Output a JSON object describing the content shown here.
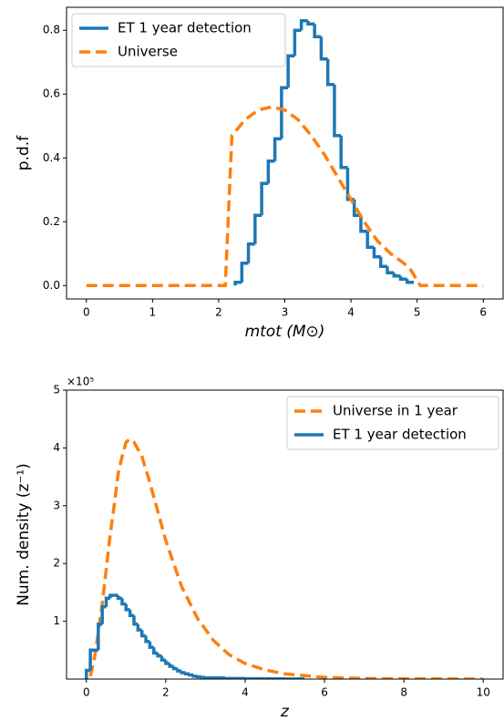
{
  "chart_data": [
    {
      "type": "line",
      "xlabel": "mtot (M⊙)",
      "ylabel": "p.d.f",
      "legend": "upper left",
      "xlim": [
        -0.3,
        6.3
      ],
      "ylim": [
        -0.042,
        0.872
      ],
      "xticks": [
        0,
        1,
        2,
        3,
        4,
        5,
        6
      ],
      "yticks": [
        {
          "value": 0,
          "label": "0.0"
        },
        0.2,
        0.4,
        0.6,
        0.8
      ],
      "series": [
        {
          "name": "ET 1 year detection",
          "color": "#1f77b4",
          "style": "steps",
          "bins": [
            2.25,
            2.35,
            2.45,
            2.55,
            2.65,
            2.75,
            2.85,
            2.95,
            3.05,
            3.15,
            3.25,
            3.35,
            3.45,
            3.55,
            3.65,
            3.75,
            3.85,
            3.95,
            4.05,
            4.15,
            4.25,
            4.35,
            4.45,
            4.55,
            4.65,
            4.75,
            4.85,
            4.95
          ],
          "values": [
            0.01,
            0.07,
            0.13,
            0.22,
            0.32,
            0.39,
            0.46,
            0.62,
            0.72,
            0.8,
            0.83,
            0.82,
            0.78,
            0.71,
            0.63,
            0.47,
            0.37,
            0.27,
            0.22,
            0.17,
            0.12,
            0.09,
            0.06,
            0.04,
            0.03,
            0.02,
            0.01
          ]
        },
        {
          "name": "Universe",
          "color": "#ff7f0e",
          "style": "dashed",
          "x": [
            0,
            1,
            2,
            2.1,
            2.2,
            2.4,
            2.6,
            2.8,
            3.0,
            3.2,
            3.4,
            3.6,
            3.8,
            4.0,
            4.2,
            4.4,
            4.6,
            4.8,
            4.9,
            5.05,
            6
          ],
          "values": [
            0,
            0,
            0,
            0,
            0.47,
            0.52,
            0.55,
            0.56,
            0.55,
            0.52,
            0.47,
            0.41,
            0.34,
            0.27,
            0.2,
            0.14,
            0.1,
            0.07,
            0.05,
            0,
            0
          ]
        }
      ]
    },
    {
      "type": "line",
      "xlabel": "z",
      "ylabel": "Num. density (z⁻¹)",
      "offset_text": "×10⁵",
      "legend": "upper right",
      "xlim": [
        -0.5,
        10.5
      ],
      "ylim": [
        0,
        500000
      ],
      "xticks": [
        0,
        2,
        4,
        6,
        8,
        10
      ],
      "yticks": [
        {
          "value": 100000,
          "label": "1"
        },
        {
          "value": 200000,
          "label": "2"
        },
        {
          "value": 300000,
          "label": "3"
        },
        {
          "value": 400000,
          "label": "4"
        },
        {
          "value": 500000,
          "label": "5"
        }
      ],
      "series": [
        {
          "name": "Universe in 1 year",
          "color": "#ff7f0e",
          "style": "dashed",
          "x": [
            0.1,
            0.2,
            0.3,
            0.4,
            0.5,
            0.6,
            0.7,
            0.8,
            0.9,
            1.0,
            1.1,
            1.2,
            1.4,
            1.6,
            1.8,
            2.0,
            2.4,
            2.8,
            3.2,
            3.6,
            4.0,
            4.5,
            5,
            6,
            7,
            8,
            10
          ],
          "values": [
            5000,
            35000,
            80000,
            130000,
            190000,
            250000,
            300000,
            355000,
            385000,
            410000,
            415000,
            410000,
            385000,
            340000,
            290000,
            240000,
            160000,
            105000,
            67000,
            42000,
            27000,
            16000,
            9000,
            3000,
            1000,
            300,
            0
          ]
        },
        {
          "name": "ET 1 year detection",
          "color": "#1f77b4",
          "style": "steps",
          "bins": [
            0,
            0.1,
            0.2,
            0.3,
            0.4,
            0.5,
            0.6,
            0.7,
            0.8,
            0.9,
            1.0,
            1.1,
            1.2,
            1.3,
            1.4,
            1.5,
            1.6,
            1.7,
            1.8,
            1.9,
            2.0,
            2.1,
            2.2,
            2.3,
            2.4,
            2.5,
            2.6,
            2.7,
            2.8,
            2.9,
            3.0,
            3.5,
            4.0,
            4.5,
            5.0,
            5.5
          ],
          "values": [
            15000,
            50000,
            50000,
            95000,
            125000,
            140000,
            145000,
            145000,
            140000,
            130000,
            120000,
            110000,
            95000,
            85000,
            75000,
            65000,
            55000,
            45000,
            40000,
            33000,
            27000,
            22000,
            18000,
            14000,
            11000,
            9000,
            7000,
            5000,
            4000,
            3000,
            2000,
            1000,
            500,
            300,
            100
          ]
        }
      ]
    }
  ]
}
